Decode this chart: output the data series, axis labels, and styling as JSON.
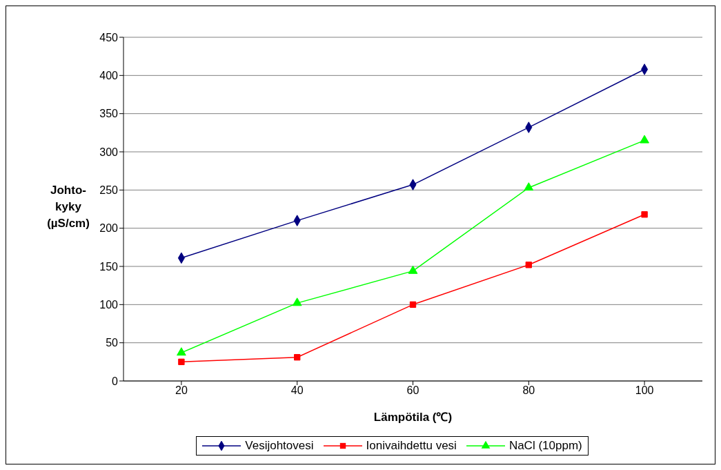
{
  "chart_data": {
    "type": "line",
    "xlabel": "Lämpötila (℃)",
    "ylabel": "Johto- kyky (µS/cm)",
    "categories": [
      "20",
      "40",
      "60",
      "80",
      "100"
    ],
    "series": [
      {
        "name": "Vesijohtovesi",
        "color": "#000080",
        "marker": "diamond",
        "values": [
          161,
          210,
          257,
          332,
          408
        ]
      },
      {
        "name": "Ionivaihdettu vesi",
        "color": "#ff0000",
        "marker": "square",
        "values": [
          25,
          31,
          100,
          152,
          218
        ]
      },
      {
        "name": "NaCl (10ppm)",
        "color": "#00ff00",
        "marker": "triangle",
        "values": [
          37,
          102,
          144,
          253,
          315
        ]
      }
    ],
    "ylim": [
      0,
      450
    ],
    "yticks": [
      0,
      50,
      100,
      150,
      200,
      250,
      300,
      350,
      400,
      450
    ],
    "grid": "y",
    "legend": "bottom",
    "line_style": "solid"
  }
}
